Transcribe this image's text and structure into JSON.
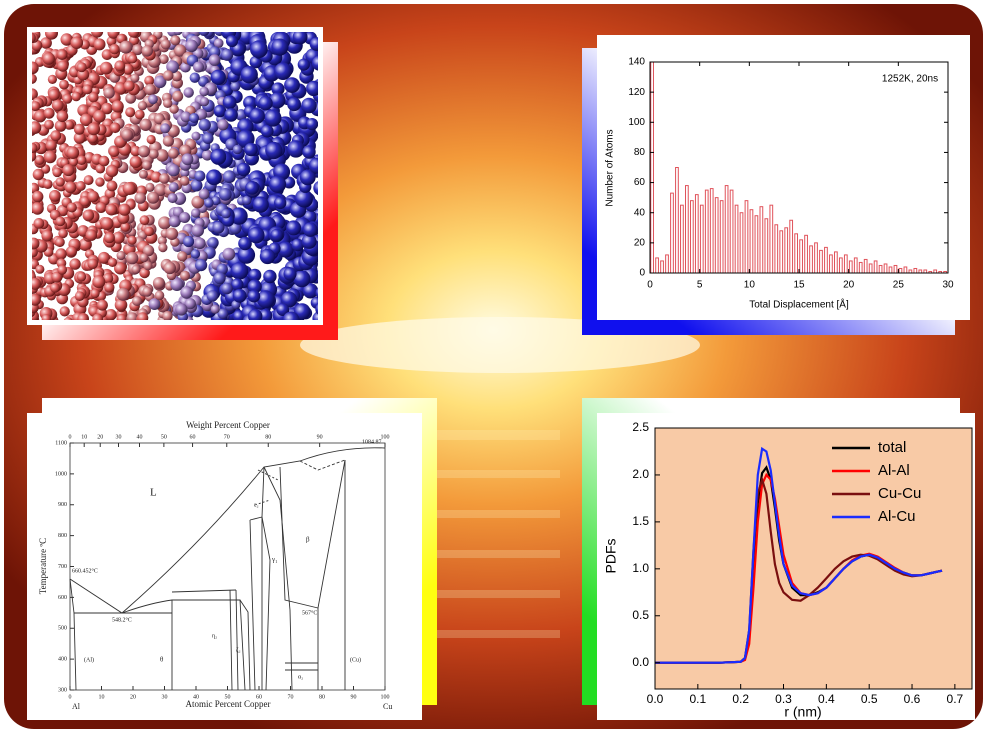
{
  "chart_data": [
    {
      "type": "histogram",
      "annotation": "1252K, 20ns",
      "xlabel": "Total Displacement [Å]",
      "ylabel": "Number of Atoms",
      "color": "#e0525a",
      "bins": [
        0,
        0.5,
        1,
        1.5,
        2,
        2.5,
        3,
        3.5,
        4,
        4.5,
        5,
        5.5,
        6,
        6.5,
        7,
        7.5,
        8,
        8.5,
        9,
        9.5,
        10,
        10.5,
        11,
        11.5,
        12,
        12.5,
        13,
        13.5,
        14,
        14.5,
        15,
        15.5,
        16,
        16.5,
        17,
        17.5,
        18,
        18.5,
        19,
        19.5,
        20,
        20.5,
        21,
        21.5,
        22,
        22.5,
        23,
        23.5,
        24,
        24.5,
        25,
        25.5,
        26,
        26.5,
        27,
        27.5,
        28,
        28.5,
        29,
        29.5,
        30
      ],
      "values": [
        140,
        10,
        8,
        12,
        53,
        70,
        45,
        58,
        48,
        52,
        45,
        55,
        56,
        50,
        48,
        58,
        55,
        45,
        40,
        48,
        42,
        38,
        44,
        36,
        45,
        32,
        28,
        30,
        35,
        26,
        22,
        25,
        18,
        20,
        15,
        17,
        12,
        14,
        10,
        12,
        8,
        10,
        7,
        9,
        6,
        8,
        5,
        6,
        4,
        5,
        3,
        4,
        2,
        3,
        2,
        2,
        1,
        2,
        1,
        1
      ],
      "xlim": [
        0,
        30
      ],
      "ylim": [
        0,
        140
      ],
      "xticks": [
        0,
        5,
        10,
        15,
        20,
        25,
        30
      ],
      "yticks": [
        0,
        20,
        40,
        60,
        80,
        100,
        120,
        140
      ]
    },
    {
      "type": "line",
      "xlabel": "r (nm)",
      "ylabel": "PDFs",
      "legend": "upper right",
      "background": "#f8caa6",
      "x": [
        0,
        0.05,
        0.1,
        0.15,
        0.2,
        0.21,
        0.22,
        0.23,
        0.24,
        0.25,
        0.26,
        0.27,
        0.28,
        0.29,
        0.3,
        0.32,
        0.34,
        0.36,
        0.38,
        0.4,
        0.42,
        0.44,
        0.46,
        0.48,
        0.5,
        0.52,
        0.54,
        0.56,
        0.58,
        0.6,
        0.62,
        0.64,
        0.66,
        0.67
      ],
      "series": [
        {
          "name": "total",
          "color": "#000000",
          "values": [
            0,
            0,
            0,
            0,
            0.01,
            0.05,
            0.3,
            1.0,
            1.7,
            2.02,
            2.08,
            1.95,
            1.65,
            1.3,
            1.05,
            0.8,
            0.72,
            0.72,
            0.75,
            0.8,
            0.9,
            1.0,
            1.08,
            1.13,
            1.15,
            1.12,
            1.06,
            1.0,
            0.96,
            0.93,
            0.93,
            0.95,
            0.97,
            0.98
          ]
        },
        {
          "name": "Al-Al",
          "color": "#ff0000",
          "values": [
            0,
            0,
            0,
            0,
            0.01,
            0.03,
            0.2,
            0.8,
            1.5,
            1.9,
            2.0,
            1.95,
            1.75,
            1.45,
            1.15,
            0.85,
            0.74,
            0.72,
            0.74,
            0.8,
            0.9,
            1.0,
            1.09,
            1.14,
            1.16,
            1.13,
            1.07,
            1.01,
            0.96,
            0.93,
            0.93,
            0.95,
            0.97,
            0.98
          ]
        },
        {
          "name": "Cu-Cu",
          "color": "#7a0f0f",
          "values": [
            0,
            0,
            0,
            0,
            0.01,
            0.05,
            0.35,
            1.2,
            1.8,
            1.95,
            1.8,
            1.4,
            1.05,
            0.85,
            0.75,
            0.67,
            0.66,
            0.72,
            0.8,
            0.9,
            1.0,
            1.08,
            1.13,
            1.15,
            1.14,
            1.1,
            1.04,
            0.98,
            0.94,
            0.92,
            0.93,
            0.95,
            0.97,
            0.98
          ]
        },
        {
          "name": "Al-Cu",
          "color": "#1a2cff",
          "values": [
            0,
            0,
            0,
            0,
            0.01,
            0.05,
            0.35,
            1.2,
            2.0,
            2.28,
            2.25,
            2.05,
            1.7,
            1.35,
            1.05,
            0.82,
            0.74,
            0.72,
            0.74,
            0.8,
            0.9,
            1.0,
            1.08,
            1.13,
            1.15,
            1.12,
            1.06,
            1.0,
            0.96,
            0.93,
            0.93,
            0.95,
            0.97,
            0.98
          ]
        }
      ],
      "xlim": [
        0,
        0.74
      ],
      "ylim": [
        -0.28,
        2.5
      ],
      "xticks": [
        {
          "value": 0,
          "label": "0.0"
        },
        0.1,
        0.2,
        0.3,
        0.4,
        0.5,
        0.6,
        0.7
      ],
      "yticks": [
        {
          "value": 0,
          "label": "0.0"
        },
        0.5,
        {
          "value": 1,
          "label": "1.0"
        },
        1.5,
        {
          "value": 2,
          "label": "2.0"
        },
        2.5
      ]
    }
  ],
  "phase_diagram": {
    "top_label": "Weight Percent Copper",
    "bottom_label": "Atomic Percent Copper",
    "y_label": "Temperature ºC",
    "weight_ticks": [
      0,
      10,
      20,
      30,
      40,
      50,
      60,
      70,
      80,
      90,
      100
    ],
    "atomic_ticks": [
      0,
      10,
      20,
      30,
      40,
      50,
      60,
      70,
      80,
      90,
      100
    ],
    "temp_ticks": [
      300,
      400,
      500,
      600,
      700,
      800,
      900,
      1000,
      1100
    ],
    "left_element": "Al",
    "right_element": "Cu",
    "liquid": "L",
    "al_melt": "660.452°C",
    "eutectic": "548.2°C",
    "peritectic": "567°C",
    "cu_melt": "1084.87",
    "al_phase": "(Al)",
    "cu_phase": "(Cu)",
    "theta": "θ",
    "beta": "β",
    "gamma": "γ₁",
    "eta": "η₂",
    "zeta": "ζ₂",
    "epsilon": "ε₂",
    "alpha2": "α₂"
  }
}
